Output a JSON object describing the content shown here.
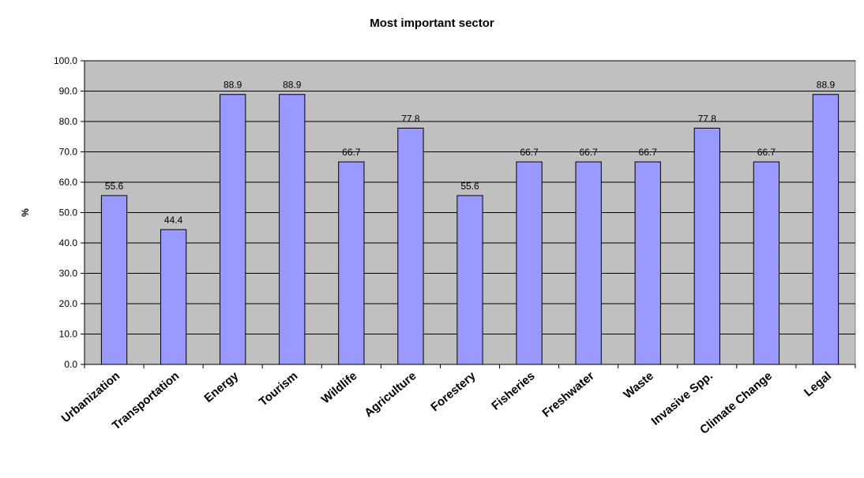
{
  "chart_data": {
    "type": "bar",
    "title": "Most important sector",
    "xlabel": "",
    "ylabel": "%",
    "ylim": [
      0,
      100
    ],
    "yticks": [
      0,
      10,
      20,
      30,
      40,
      50,
      60,
      70,
      80,
      90,
      100
    ],
    "ytick_labels": [
      "0.0",
      "10.0",
      "20.0",
      "30.0",
      "40.0",
      "50.0",
      "60.0",
      "70.0",
      "80.0",
      "90.0",
      "100.0"
    ],
    "categories": [
      "Urbanization",
      "Transportation",
      "Energy",
      "Tourism",
      "Wildlife",
      "Agriculture",
      "Forestery",
      "Fisheries",
      "Freshwater",
      "Waste",
      "Invasive Spp.",
      "Climate Change",
      "Legal"
    ],
    "values": [
      55.6,
      44.4,
      88.9,
      88.9,
      66.7,
      77.8,
      55.6,
      66.7,
      66.7,
      66.7,
      77.8,
      66.7,
      88.9
    ],
    "value_labels": [
      "55.6",
      "44.4",
      "88.9",
      "88.9",
      "66.7",
      "77.8",
      "55.6",
      "66.7",
      "66.7",
      "66.7",
      "77.8",
      "66.7",
      "88.9"
    ],
    "grid": true,
    "legend": "none",
    "colors": {
      "bar_fill": "#9999ff",
      "plot_background": "#c0c0c0",
      "gridline": "#000000",
      "bar_stroke": "#000000"
    }
  }
}
